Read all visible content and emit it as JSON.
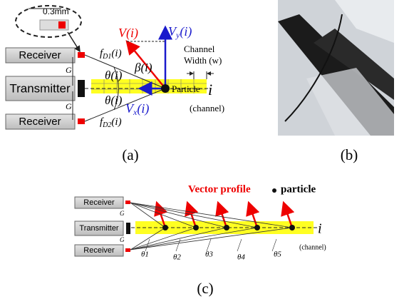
{
  "panel_a": {
    "inset_label": "0.3mm",
    "receiver_top": "Receiver",
    "transmitter": "Transmitter",
    "receiver_bottom": "Receiver",
    "gap_top": "G",
    "gap_bottom": "G",
    "f_d1": {
      "base": "f",
      "sub": "D1",
      "arg": "(i)"
    },
    "f_d2": {
      "base": "f",
      "sub": "D2",
      "arg": "(i)"
    },
    "theta_top": "θ(i)",
    "theta_bottom": "θ(i)",
    "beta": "β(i)",
    "v": "V(i)",
    "v_y": {
      "base": "V",
      "sub": "y",
      "arg": "(i)"
    },
    "v_x": {
      "base": "V",
      "sub": "x",
      "arg": "(i)"
    },
    "channel_width_1": "Channel",
    "channel_width_2": "Width (w)",
    "particle": "Particle",
    "axis": "i",
    "channel": "(channel)",
    "caption": "(a)"
  },
  "panel_b": {
    "caption": "(b)"
  },
  "panel_c": {
    "vector_profile": "Vector profile",
    "particle": "particle",
    "receiver_top": "Receiver",
    "transmitter": "Transmitter",
    "receiver_bottom": "Receiver",
    "gap_top": "G",
    "gap_bottom": "G",
    "thetas": [
      "θ1",
      "θ2",
      "θ3",
      "θ4",
      "θ5"
    ],
    "axis": "i",
    "channel": "(channel)",
    "caption": "(c)"
  }
}
